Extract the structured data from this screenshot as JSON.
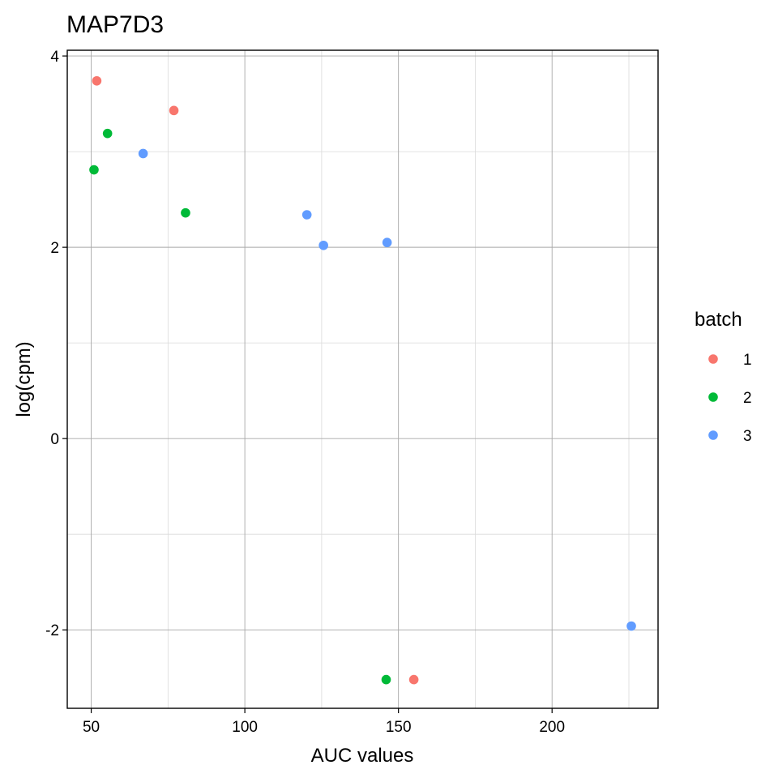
{
  "chart_data": {
    "type": "scatter",
    "title": "MAP7D3",
    "xlabel": "AUC values",
    "ylabel": "log(cpm)",
    "xlim": [
      42.2,
      234.5
    ],
    "ylim": [
      -2.82,
      4.06
    ],
    "xticks": [
      50,
      100,
      150,
      200
    ],
    "xtick_labels": [
      "50",
      "100",
      "150",
      "200"
    ],
    "yticks": [
      -2,
      0,
      2,
      4
    ],
    "ytick_labels": [
      "-2",
      "0",
      "2",
      "4"
    ],
    "grid": true,
    "legend": {
      "title": "batch",
      "position": "right"
    },
    "series": [
      {
        "name": "1",
        "color": "#F8766D",
        "x": [
          51.8,
          76.9,
          155.0
        ],
        "y": [
          3.74,
          3.43,
          -2.52
        ]
      },
      {
        "name": "2",
        "color": "#00BA38",
        "x": [
          55.3,
          50.9,
          80.7,
          146.0
        ],
        "y": [
          3.19,
          2.81,
          2.36,
          -2.52
        ]
      },
      {
        "name": "3",
        "color": "#619CFF",
        "x": [
          66.9,
          120.2,
          125.6,
          146.3,
          225.8
        ],
        "y": [
          2.98,
          2.34,
          2.02,
          2.05,
          -1.96
        ]
      }
    ]
  }
}
